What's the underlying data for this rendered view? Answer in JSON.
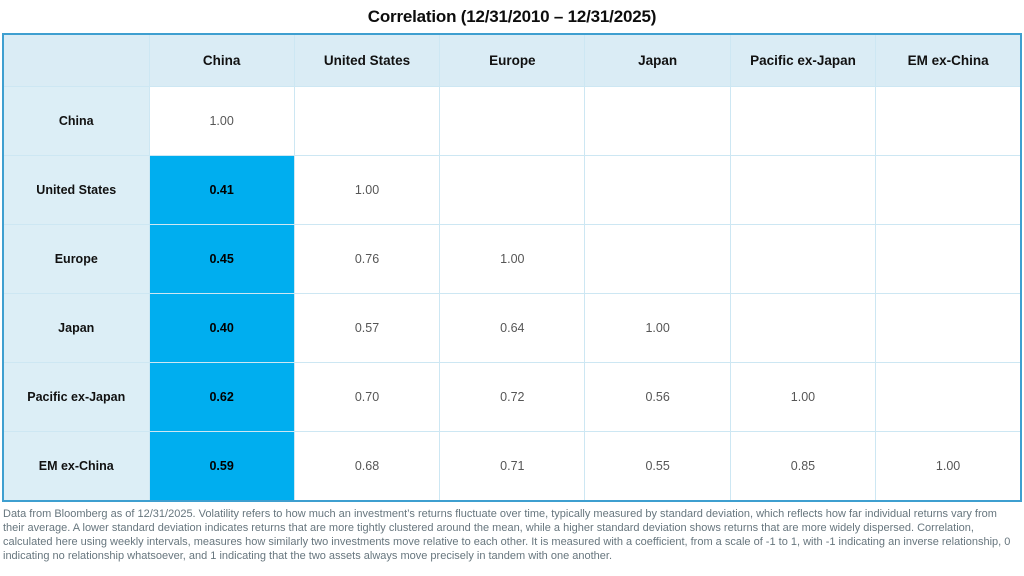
{
  "chart_data": {
    "type": "heatmap",
    "title": "Correlation (12/31/2010 – 12/31/2025)",
    "categories": [
      "China",
      "United States",
      "Europe",
      "Japan",
      "Pacific ex-Japan",
      "EM ex-China"
    ],
    "matrix": [
      [
        1.0,
        null,
        null,
        null,
        null,
        null
      ],
      [
        0.41,
        1.0,
        null,
        null,
        null,
        null
      ],
      [
        0.45,
        0.76,
        1.0,
        null,
        null,
        null
      ],
      [
        0.4,
        0.57,
        0.64,
        1.0,
        null,
        null
      ],
      [
        0.62,
        0.7,
        0.72,
        0.56,
        1.0,
        null
      ],
      [
        0.59,
        0.68,
        0.71,
        0.55,
        0.85,
        1.0
      ]
    ],
    "value_format": "two-decimals",
    "layout": {
      "lower_triangle_only": true,
      "highlighted_column": "China",
      "highlight_excludes_diagonal": true,
      "grid": true
    }
  },
  "colors": {
    "highlight_cell": "#00AEEF",
    "header_background": "#DAECF5",
    "row_label_background": "#DCEEF6",
    "outer_border": "#3E9FD0",
    "grid_line": "#CDE7F3",
    "value_text": "#565656",
    "footnote_text": "#67767E"
  },
  "footnote": "Data from Bloomberg as of 12/31/2025. Volatility refers to how much an investment’s returns fluctuate over time, typically measured by standard deviation, which reflects how far individual returns vary from their average. A lower standard deviation indicates returns that are more tightly clustered around the mean, while a higher standard deviation shows returns that are more widely dispersed. Correlation, calculated here using weekly intervals, measures how similarly two investments move relative to each other. It is measured with a coefficient, from a scale of -1 to 1, with -1 indicating an inverse relationship, 0 indicating no relationship whatsoever, and 1 indicating that the two assets always move precisely in tandem with one another."
}
